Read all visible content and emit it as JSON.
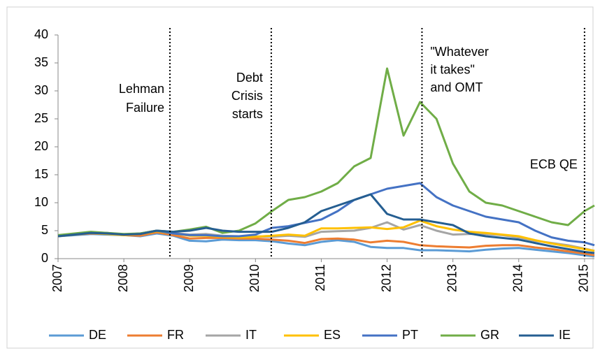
{
  "chart_data": {
    "type": "line",
    "x": [
      2007,
      2007.25,
      2007.5,
      2007.75,
      2008,
      2008.25,
      2008.5,
      2008.75,
      2009,
      2009.25,
      2009.5,
      2009.75,
      2010,
      2010.25,
      2010.5,
      2010.75,
      2011,
      2011.25,
      2011.5,
      2011.75,
      2012,
      2012.25,
      2012.5,
      2012.75,
      2013,
      2013.25,
      2013.5,
      2013.75,
      2014,
      2014.25,
      2014.5,
      2014.75,
      2015,
      2015.15
    ],
    "series": [
      {
        "name": "DE",
        "color": "#5b9bd5",
        "values": [
          4.0,
          4.2,
          4.4,
          4.3,
          4.2,
          4.0,
          4.5,
          4.1,
          3.2,
          3.1,
          3.4,
          3.3,
          3.3,
          3.1,
          2.7,
          2.4,
          3.0,
          3.3,
          3.0,
          2.1,
          1.9,
          1.9,
          1.5,
          1.5,
          1.4,
          1.3,
          1.6,
          1.8,
          1.9,
          1.6,
          1.3,
          1.0,
          0.6,
          0.4
        ]
      },
      {
        "name": "FR",
        "color": "#ed7d31",
        "values": [
          4.1,
          4.3,
          4.5,
          4.4,
          4.2,
          4.1,
          4.7,
          4.2,
          3.6,
          3.7,
          3.7,
          3.6,
          3.6,
          3.4,
          3.2,
          2.8,
          3.5,
          3.6,
          3.4,
          2.9,
          3.2,
          3.0,
          2.4,
          2.2,
          2.1,
          2.0,
          2.3,
          2.4,
          2.4,
          2.0,
          1.7,
          1.3,
          0.9,
          0.6
        ]
      },
      {
        "name": "IT",
        "color": "#a5a5a5",
        "values": [
          4.1,
          4.4,
          4.6,
          4.5,
          4.3,
          4.5,
          5.0,
          4.6,
          4.3,
          4.4,
          4.1,
          4.0,
          4.0,
          3.9,
          4.1,
          3.9,
          4.8,
          4.9,
          5.0,
          5.5,
          6.5,
          5.2,
          6.0,
          5.0,
          4.3,
          4.4,
          4.4,
          4.2,
          3.8,
          3.2,
          2.8,
          2.4,
          1.8,
          1.4
        ]
      },
      {
        "name": "ES",
        "color": "#ffc000",
        "values": [
          4.0,
          4.3,
          4.6,
          4.4,
          4.2,
          4.4,
          4.9,
          4.5,
          4.1,
          4.1,
          3.9,
          3.8,
          3.9,
          4.1,
          4.3,
          4.1,
          5.4,
          5.4,
          5.5,
          5.6,
          5.3,
          5.6,
          6.8,
          5.8,
          5.2,
          4.8,
          4.6,
          4.3,
          4.0,
          3.3,
          2.7,
          2.2,
          1.7,
          1.4
        ]
      },
      {
        "name": "PT",
        "color": "#4472c4",
        "values": [
          4.1,
          4.4,
          4.7,
          4.6,
          4.3,
          4.5,
          5.0,
          4.5,
          4.2,
          4.2,
          4.0,
          4.0,
          4.3,
          5.5,
          5.8,
          6.4,
          7.0,
          8.5,
          10.5,
          11.5,
          12.5,
          13.0,
          13.5,
          11.0,
          9.5,
          8.5,
          7.5,
          7.0,
          6.5,
          5.0,
          3.8,
          3.2,
          2.9,
          2.4
        ]
      },
      {
        "name": "GR",
        "color": "#70ad47",
        "values": [
          4.2,
          4.5,
          4.8,
          4.6,
          4.4,
          4.5,
          5.0,
          4.8,
          5.2,
          5.7,
          4.6,
          5.0,
          6.3,
          8.5,
          10.5,
          11.0,
          12.0,
          13.5,
          16.5,
          18.0,
          34.0,
          22.0,
          28.0,
          25.0,
          17.0,
          12.0,
          10.0,
          9.5,
          8.5,
          7.5,
          6.5,
          6.0,
          8.5,
          9.5
        ]
      },
      {
        "name": "IE",
        "color": "#255e91",
        "values": [
          4.0,
          4.3,
          4.6,
          4.5,
          4.3,
          4.4,
          5.0,
          4.8,
          5.0,
          5.5,
          5.0,
          4.8,
          4.8,
          4.8,
          5.5,
          6.5,
          8.5,
          9.5,
          10.5,
          11.5,
          8.0,
          7.0,
          7.0,
          6.5,
          6.0,
          4.5,
          4.0,
          3.7,
          3.4,
          2.8,
          2.2,
          1.7,
          1.2,
          1.0
        ]
      }
    ],
    "xlim": [
      2007,
      2015.15
    ],
    "xticks": [
      2007,
      2008,
      2009,
      2010,
      2011,
      2012,
      2013,
      2014,
      2015
    ],
    "ylim": [
      0,
      40
    ],
    "yticks": [
      0,
      5,
      10,
      15,
      20,
      25,
      30,
      35,
      40
    ],
    "events": [
      {
        "x": 2008.7,
        "label": [
          "Lehman",
          "Failure"
        ]
      },
      {
        "x": 2010.24,
        "label": [
          "Debt",
          "Crisis",
          "starts"
        ]
      },
      {
        "x": 2012.53,
        "label": [
          "\"Whatever",
          "it takes\"",
          "and OMT"
        ]
      },
      {
        "x": 2015.0,
        "label": [
          "ECB QE"
        ]
      }
    ],
    "legend": "bottom"
  }
}
